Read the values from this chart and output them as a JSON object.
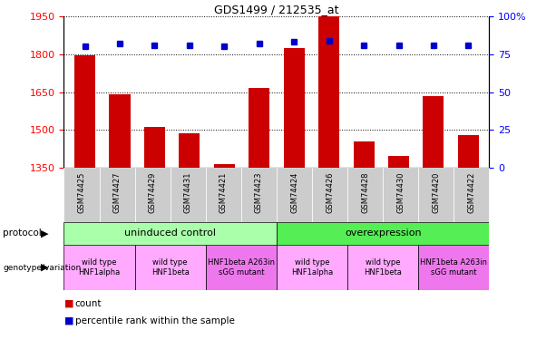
{
  "title": "GDS1499 / 212535_at",
  "samples": [
    "GSM74425",
    "GSM74427",
    "GSM74429",
    "GSM74431",
    "GSM74421",
    "GSM74423",
    "GSM74424",
    "GSM74426",
    "GSM74428",
    "GSM74430",
    "GSM74420",
    "GSM74422"
  ],
  "counts": [
    1795,
    1642,
    1510,
    1488,
    1365,
    1665,
    1825,
    1950,
    1455,
    1395,
    1635,
    1480
  ],
  "percentiles": [
    80,
    82,
    81,
    81,
    80,
    82,
    83,
    84,
    81,
    81,
    81,
    81
  ],
  "ymin": 1350,
  "ymax": 1950,
  "yticks": [
    1350,
    1500,
    1650,
    1800,
    1950
  ],
  "right_yticks": [
    0,
    25,
    50,
    75,
    100
  ],
  "bar_color": "#cc0000",
  "dot_color": "#0000cc",
  "protocol_uninduced_color": "#aaffaa",
  "protocol_overexpression_color": "#55ee55",
  "genotype_color_pink": "#ffaaff",
  "genotype_color_magenta": "#ee77ee",
  "sample_bg_color": "#cccccc",
  "protocol_uninduced_label": "uninduced control",
  "protocol_overexpression_label": "overexpression",
  "genotype_groups": [
    {
      "label": "wild type\nHNF1alpha",
      "start": 0,
      "end": 1,
      "color": "#ffaaff"
    },
    {
      "label": "wild type\nHNF1beta",
      "start": 2,
      "end": 3,
      "color": "#ffaaff"
    },
    {
      "label": "HNF1beta A263in\nsGG mutant",
      "start": 4,
      "end": 5,
      "color": "#ee77ee"
    },
    {
      "label": "wild type\nHNF1alpha",
      "start": 6,
      "end": 7,
      "color": "#ffaaff"
    },
    {
      "label": "wild type\nHNF1beta",
      "start": 8,
      "end": 9,
      "color": "#ffaaff"
    },
    {
      "label": "HNF1beta A263in\nsGG mutant",
      "start": 10,
      "end": 11,
      "color": "#ee77ee"
    }
  ]
}
